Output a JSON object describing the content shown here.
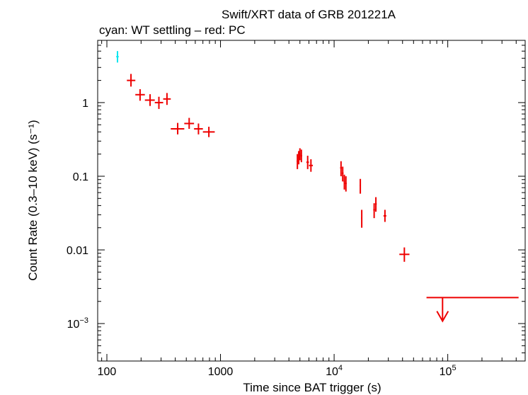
{
  "chart_data": {
    "type": "scatter",
    "title": "Swift/XRT data of GRB 201221A",
    "subtitle": "cyan: WT settling – red: PC",
    "xlabel": "Time since BAT trigger (s)",
    "ylabel": "Count Rate (0.3–10 keV) (s⁻¹)",
    "xscale": "log",
    "yscale": "log",
    "xlim": [
      83,
      480000
    ],
    "ylim": [
      0.00031,
      7
    ],
    "grid": false,
    "x_ticks": [
      {
        "value": 100,
        "label": "100"
      },
      {
        "value": 1000,
        "label": "1000"
      },
      {
        "value": 10000,
        "base": "10",
        "exp": "4"
      },
      {
        "value": 100000,
        "base": "10",
        "exp": "5"
      }
    ],
    "y_ticks": [
      {
        "value": 1,
        "label": "1"
      },
      {
        "value": 0.1,
        "label": "0.1"
      },
      {
        "value": 0.01,
        "label": "0.01"
      },
      {
        "value": 0.001,
        "base": "10",
        "exp": "−3"
      }
    ],
    "series": [
      {
        "name": "WT settling",
        "color": "#00e5ee",
        "points": [
          {
            "x": 124,
            "xlo": 121,
            "xhi": 127,
            "y": 4.2,
            "ylo": 3.5,
            "yhi": 5.0
          }
        ]
      },
      {
        "name": "PC",
        "color": "#ee0000",
        "points": [
          {
            "x": 163,
            "xlo": 150,
            "xhi": 178,
            "y": 2.0,
            "ylo": 1.65,
            "yhi": 2.45
          },
          {
            "x": 196,
            "xlo": 178,
            "xhi": 216,
            "y": 1.28,
            "ylo": 1.06,
            "yhi": 1.52
          },
          {
            "x": 240,
            "xlo": 216,
            "xhi": 264,
            "y": 1.08,
            "ylo": 0.9,
            "yhi": 1.3
          },
          {
            "x": 287,
            "xlo": 264,
            "xhi": 313,
            "y": 1.0,
            "ylo": 0.82,
            "yhi": 1.2
          },
          {
            "x": 338,
            "xlo": 313,
            "xhi": 365,
            "y": 1.12,
            "ylo": 0.93,
            "yhi": 1.35
          },
          {
            "x": 420,
            "xlo": 365,
            "xhi": 480,
            "y": 0.44,
            "ylo": 0.37,
            "yhi": 0.53
          },
          {
            "x": 530,
            "xlo": 480,
            "xhi": 585,
            "y": 0.52,
            "ylo": 0.44,
            "yhi": 0.62
          },
          {
            "x": 640,
            "xlo": 585,
            "xhi": 700,
            "y": 0.44,
            "ylo": 0.37,
            "yhi": 0.52
          },
          {
            "x": 790,
            "xlo": 700,
            "xhi": 890,
            "y": 0.4,
            "ylo": 0.34,
            "yhi": 0.47
          },
          {
            "x": 4750,
            "xlo": 4680,
            "xhi": 4820,
            "y": 0.16,
            "ylo": 0.125,
            "yhi": 0.2
          },
          {
            "x": 4880,
            "xlo": 4820,
            "xhi": 4940,
            "y": 0.18,
            "ylo": 0.145,
            "yhi": 0.22
          },
          {
            "x": 5000,
            "xlo": 4940,
            "xhi": 5070,
            "y": 0.2,
            "ylo": 0.165,
            "yhi": 0.24
          },
          {
            "x": 5150,
            "xlo": 5070,
            "xhi": 5230,
            "y": 0.19,
            "ylo": 0.155,
            "yhi": 0.23
          },
          {
            "x": 5850,
            "xlo": 5700,
            "xhi": 6000,
            "y": 0.155,
            "ylo": 0.125,
            "yhi": 0.19
          },
          {
            "x": 6250,
            "xlo": 6000,
            "xhi": 6500,
            "y": 0.14,
            "ylo": 0.115,
            "yhi": 0.17
          },
          {
            "x": 11500,
            "xlo": 11300,
            "xhi": 11700,
            "y": 0.13,
            "ylo": 0.1,
            "yhi": 0.16
          },
          {
            "x": 11900,
            "xlo": 11700,
            "xhi": 12100,
            "y": 0.11,
            "ylo": 0.085,
            "yhi": 0.135
          },
          {
            "x": 12300,
            "xlo": 12100,
            "xhi": 12500,
            "y": 0.085,
            "ylo": 0.066,
            "yhi": 0.105
          },
          {
            "x": 12700,
            "xlo": 12500,
            "xhi": 12900,
            "y": 0.08,
            "ylo": 0.062,
            "yhi": 0.1
          },
          {
            "x": 17000,
            "xlo": 16800,
            "xhi": 17200,
            "y": 0.075,
            "ylo": 0.058,
            "yhi": 0.092
          },
          {
            "x": 17500,
            "xlo": 17300,
            "xhi": 17700,
            "y": 0.027,
            "ylo": 0.02,
            "yhi": 0.035
          },
          {
            "x": 22500,
            "xlo": 22100,
            "xhi": 22900,
            "y": 0.035,
            "ylo": 0.027,
            "yhi": 0.043
          },
          {
            "x": 23300,
            "xlo": 22900,
            "xhi": 23700,
            "y": 0.042,
            "ylo": 0.033,
            "yhi": 0.052
          },
          {
            "x": 28000,
            "xlo": 27200,
            "xhi": 28800,
            "y": 0.029,
            "ylo": 0.024,
            "yhi": 0.035
          },
          {
            "x": 41500,
            "xlo": 37500,
            "xhi": 46000,
            "y": 0.0087,
            "ylo": 0.0069,
            "yhi": 0.0108
          }
        ]
      }
    ],
    "upper_limits": [
      {
        "x": 90000,
        "xlo": 65000,
        "xhi": 420000,
        "y": 0.00225,
        "arrow_to": 0.00108,
        "color": "#ee0000"
      }
    ]
  }
}
